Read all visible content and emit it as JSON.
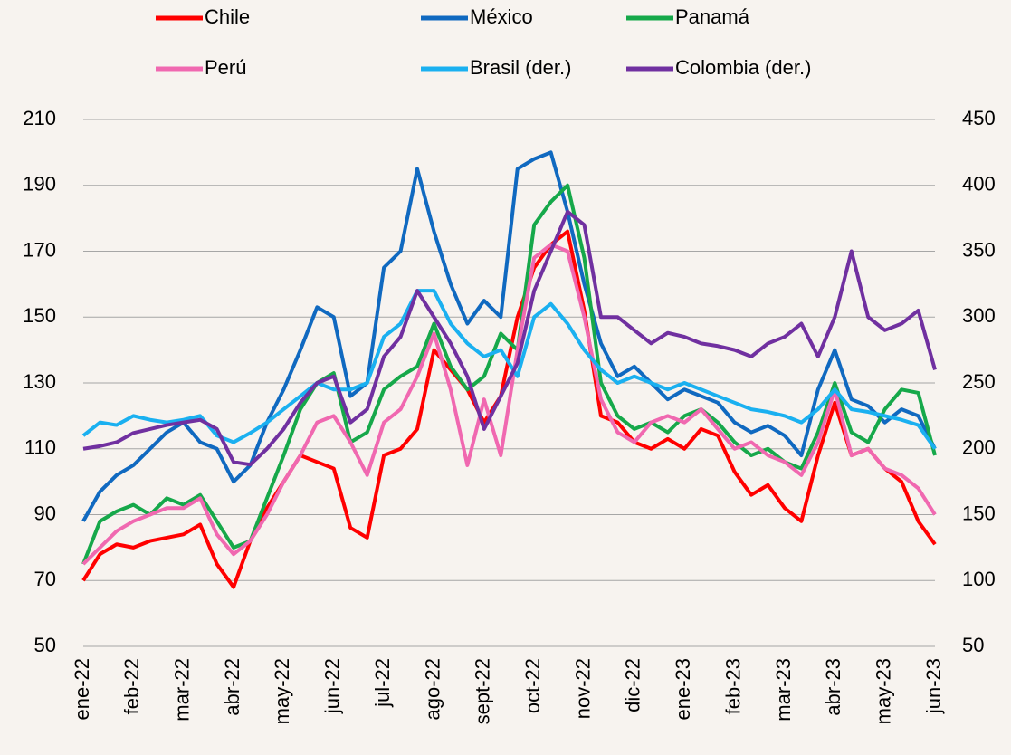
{
  "chart_data": {
    "type": "line",
    "categories": [
      "ene-22",
      null,
      null,
      "feb-22",
      null,
      null,
      "mar-22",
      null,
      null,
      "abr-22",
      null,
      null,
      "may-22",
      null,
      null,
      "jun-22",
      null,
      null,
      "jul-22",
      null,
      null,
      "ago-22",
      null,
      null,
      "sept-22",
      null,
      null,
      "oct-22",
      null,
      null,
      "nov-22",
      null,
      null,
      "dic-22",
      null,
      null,
      "ene-23",
      null,
      null,
      "feb-23",
      null,
      null,
      "mar-23",
      null,
      null,
      "abr-23",
      null,
      null,
      "may-23",
      null,
      null,
      "jun-23"
    ],
    "series": [
      {
        "name": "Chile",
        "color": "#ff0000",
        "values": [
          70,
          78,
          81,
          80,
          82,
          83,
          84,
          87,
          75,
          68,
          82,
          92,
          100,
          108,
          106,
          104,
          86,
          83,
          108,
          110,
          116,
          140,
          134,
          128,
          118,
          126,
          150,
          165,
          172,
          176,
          152,
          120,
          118,
          112,
          110,
          113,
          110,
          116,
          114,
          103,
          96,
          99,
          92,
          88,
          108,
          124,
          108,
          110,
          104,
          100,
          88,
          81
        ]
      },
      {
        "name": "México",
        "color": "#1069c0",
        "values": [
          88,
          97,
          102,
          105,
          110,
          115,
          118,
          112,
          110,
          100,
          105,
          118,
          128,
          140,
          153,
          150,
          126,
          130,
          165,
          170,
          195,
          176,
          160,
          148,
          155,
          150,
          195,
          198,
          200,
          182,
          160,
          142,
          132,
          135,
          130,
          125,
          128,
          126,
          124,
          118,
          115,
          117,
          114,
          108,
          128,
          140,
          125,
          123,
          118,
          122,
          120,
          110
        ]
      },
      {
        "name": "Panamá",
        "color": "#16a84a",
        "values": [
          75,
          88,
          91,
          93,
          90,
          95,
          93,
          96,
          88,
          80,
          82,
          95,
          108,
          122,
          130,
          133,
          112,
          115,
          128,
          132,
          135,
          148,
          135,
          128,
          132,
          145,
          140,
          178,
          185,
          190,
          168,
          130,
          120,
          116,
          118,
          115,
          120,
          122,
          118,
          112,
          108,
          110,
          106,
          104,
          115,
          130,
          115,
          112,
          122,
          128,
          127,
          108
        ]
      },
      {
        "name": "Perú",
        "color": "#f068b0",
        "values": [
          75,
          80,
          85,
          88,
          90,
          92,
          92,
          95,
          84,
          78,
          82,
          90,
          100,
          108,
          118,
          120,
          112,
          102,
          118,
          122,
          132,
          145,
          128,
          105,
          125,
          108,
          140,
          168,
          172,
          170,
          150,
          125,
          115,
          112,
          118,
          120,
          118,
          122,
          116,
          110,
          112,
          108,
          106,
          102,
          112,
          128,
          108,
          110,
          104,
          102,
          98,
          90
        ]
      },
      {
        "name": "Brasil (der.)",
        "color": "#1ab0f0",
        "axis": "y2",
        "values": [
          210,
          220,
          218,
          225,
          222,
          220,
          222,
          225,
          210,
          205,
          212,
          220,
          230,
          240,
          250,
          245,
          245,
          250,
          285,
          295,
          320,
          320,
          295,
          280,
          270,
          275,
          255,
          300,
          310,
          295,
          275,
          260,
          250,
          255,
          250,
          245,
          250,
          245,
          240,
          235,
          230,
          228,
          225,
          220,
          230,
          245,
          230,
          228,
          225,
          222,
          218,
          200
        ]
      },
      {
        "name": "Colombia (der.)",
        "color": "#7030a0",
        "axis": "y2",
        "values": [
          200,
          202,
          205,
          212,
          215,
          218,
          220,
          222,
          215,
          190,
          188,
          200,
          215,
          235,
          250,
          255,
          220,
          230,
          270,
          285,
          320,
          300,
          280,
          255,
          215,
          240,
          265,
          320,
          350,
          380,
          370,
          300,
          300,
          290,
          280,
          288,
          285,
          280,
          278,
          275,
          270,
          280,
          285,
          295,
          270,
          300,
          350,
          300,
          290,
          295,
          305,
          260
        ]
      }
    ],
    "ylim": [
      50,
      210
    ],
    "yticks": [
      50,
      70,
      90,
      110,
      130,
      150,
      170,
      190,
      210
    ],
    "y2lim": [
      50,
      450
    ],
    "y2ticks": [
      50,
      100,
      150,
      200,
      250,
      300,
      350,
      400,
      450
    ],
    "grid": true,
    "legend": "top"
  }
}
